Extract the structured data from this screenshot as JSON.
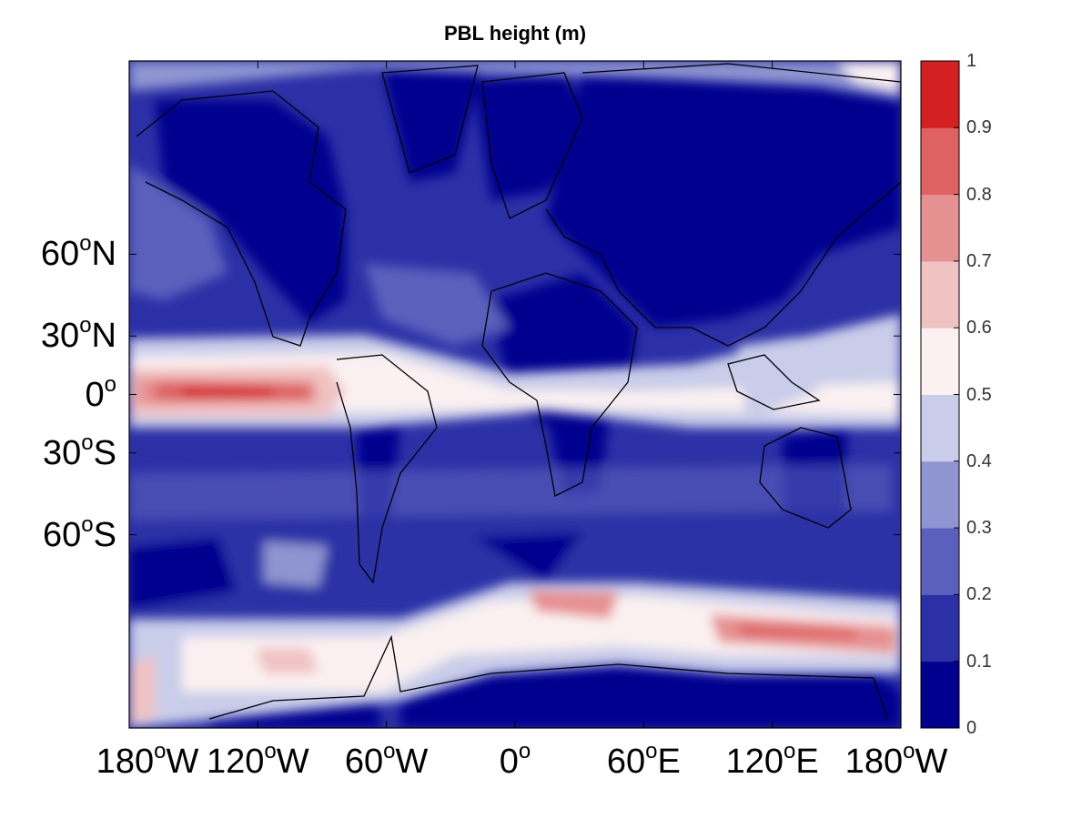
{
  "title": "PBL height (m)",
  "map": {
    "latitude_labels": [
      {
        "deg": "60",
        "hemi": "N",
        "value": 60
      },
      {
        "deg": "30",
        "hemi": "N",
        "value": 30
      },
      {
        "deg": "0",
        "hemi": "",
        "value": 0
      },
      {
        "deg": "30",
        "hemi": "S",
        "value": -30
      },
      {
        "deg": "60",
        "hemi": "S",
        "value": -60
      }
    ],
    "longitude_labels": [
      {
        "deg": "180",
        "hemi": "W",
        "value": -180
      },
      {
        "deg": "120",
        "hemi": "W",
        "value": -120
      },
      {
        "deg": "60",
        "hemi": "W",
        "value": -60
      },
      {
        "deg": "0",
        "hemi": "",
        "value": 0
      },
      {
        "deg": "60",
        "hemi": "E",
        "value": 60
      },
      {
        "deg": "120",
        "hemi": "E",
        "value": 120
      },
      {
        "deg": "180",
        "hemi": "W",
        "value": 180
      }
    ],
    "lon_range": [
      -180,
      180
    ],
    "lat_range": [
      -85,
      85
    ],
    "projection": "mercator"
  },
  "colorbar": {
    "ticks": [
      "0",
      "0.1",
      "0.2",
      "0.3",
      "0.4",
      "0.5",
      "0.6",
      "0.7",
      "0.8",
      "0.9",
      "1"
    ],
    "colors": [
      "#00008f",
      "#2b30a6",
      "#5a60bc",
      "#8e95d0",
      "#c9cde9",
      "#fbf1f1",
      "#f0c3c3",
      "#e69191",
      "#de6262",
      "#d42020"
    ]
  }
}
